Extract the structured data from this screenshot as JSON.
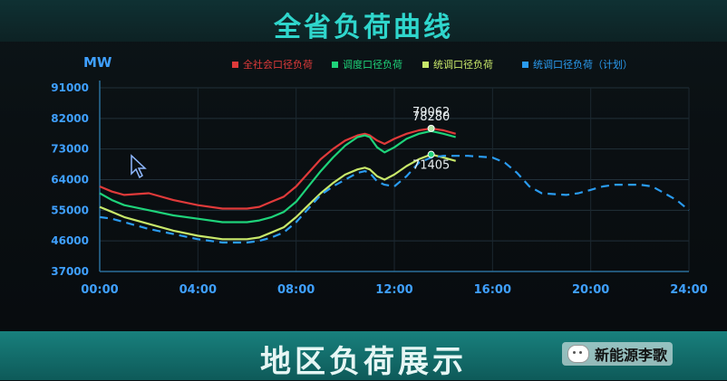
{
  "page": {
    "title": "全省负荷曲线",
    "bottom_title": "地区负荷展示",
    "watermark": "新能源李歌",
    "colors": {
      "title": "#2fd6cc",
      "axis_text": "#3fa0ff",
      "banner": "#13706d"
    }
  },
  "chart_data": {
    "type": "line",
    "title": "全省负荷曲线",
    "ylabel": "MW",
    "ylim": [
      37000,
      91000
    ],
    "xlim": [
      0,
      24
    ],
    "yticks": [
      37000,
      46000,
      55000,
      64000,
      73000,
      82000,
      91000
    ],
    "ytick_labels": [
      "37000",
      "46000",
      "55000",
      "64000",
      "73000",
      "82000",
      "91000"
    ],
    "xticks": [
      0,
      4,
      8,
      12,
      16,
      20,
      24
    ],
    "xtick_labels": [
      "00:00",
      "04:00",
      "08:00",
      "12:00",
      "16:00",
      "20:00",
      "24:00"
    ],
    "legend_position": "top-right",
    "grid": true,
    "series": [
      {
        "name": "全社会口径负荷",
        "color": "#e03a3a",
        "dash": false,
        "points": [
          [
            0.0,
            62000
          ],
          [
            0.5,
            60500
          ],
          [
            1.0,
            59500
          ],
          [
            2.0,
            60000
          ],
          [
            3.0,
            58000
          ],
          [
            4.0,
            56500
          ],
          [
            5.0,
            55500
          ],
          [
            6.0,
            55500
          ],
          [
            6.5,
            56000
          ],
          [
            7.0,
            57500
          ],
          [
            7.5,
            59000
          ],
          [
            8.0,
            62000
          ],
          [
            8.5,
            66000
          ],
          [
            9.0,
            70000
          ],
          [
            9.5,
            73000
          ],
          [
            10.0,
            75500
          ],
          [
            10.5,
            77000
          ],
          [
            10.8,
            77500
          ],
          [
            11.0,
            77000
          ],
          [
            11.3,
            75500
          ],
          [
            11.6,
            74500
          ],
          [
            12.0,
            76000
          ],
          [
            12.5,
            77500
          ],
          [
            13.0,
            78500
          ],
          [
            13.5,
            79062
          ],
          [
            14.0,
            78500
          ],
          [
            14.5,
            77500
          ]
        ]
      },
      {
        "name": "调度口径负荷",
        "color": "#1ed37a",
        "dash": false,
        "points": [
          [
            0.0,
            60000
          ],
          [
            0.5,
            58000
          ],
          [
            1.0,
            56500
          ],
          [
            2.0,
            55000
          ],
          [
            3.0,
            53500
          ],
          [
            4.0,
            52500
          ],
          [
            5.0,
            51500
          ],
          [
            6.0,
            51500
          ],
          [
            6.5,
            52000
          ],
          [
            7.0,
            53000
          ],
          [
            7.5,
            54500
          ],
          [
            8.0,
            57500
          ],
          [
            8.5,
            62000
          ],
          [
            9.0,
            66500
          ],
          [
            9.5,
            70500
          ],
          [
            10.0,
            74000
          ],
          [
            10.5,
            76500
          ],
          [
            10.8,
            77000
          ],
          [
            11.0,
            76500
          ],
          [
            11.3,
            73500
          ],
          [
            11.6,
            72000
          ],
          [
            12.0,
            73500
          ],
          [
            12.5,
            76000
          ],
          [
            13.0,
            77500
          ],
          [
            13.5,
            78280
          ],
          [
            14.0,
            77500
          ],
          [
            14.5,
            76500
          ]
        ]
      },
      {
        "name": "统调口径负荷",
        "color": "#c8e86a",
        "dash": false,
        "points": [
          [
            0.0,
            56000
          ],
          [
            0.5,
            54500
          ],
          [
            1.0,
            53000
          ],
          [
            2.0,
            51000
          ],
          [
            3.0,
            49000
          ],
          [
            4.0,
            47500
          ],
          [
            5.0,
            46500
          ],
          [
            6.0,
            46500
          ],
          [
            6.5,
            47000
          ],
          [
            7.0,
            48500
          ],
          [
            7.5,
            50000
          ],
          [
            8.0,
            53000
          ],
          [
            8.5,
            56500
          ],
          [
            9.0,
            60000
          ],
          [
            9.5,
            63000
          ],
          [
            10.0,
            65500
          ],
          [
            10.5,
            67000
          ],
          [
            10.8,
            67500
          ],
          [
            11.0,
            67000
          ],
          [
            11.3,
            65000
          ],
          [
            11.6,
            64000
          ],
          [
            12.0,
            65500
          ],
          [
            12.5,
            68000
          ],
          [
            13.0,
            70000
          ],
          [
            13.5,
            71405
          ],
          [
            14.0,
            70500
          ],
          [
            14.5,
            69500
          ]
        ]
      },
      {
        "name": "统调口径负荷（计划）",
        "color": "#2a9bf0",
        "dash": true,
        "points": [
          [
            0.0,
            53000
          ],
          [
            0.5,
            52500
          ],
          [
            1.0,
            51500
          ],
          [
            2.0,
            49500
          ],
          [
            3.0,
            48000
          ],
          [
            4.0,
            46500
          ],
          [
            5.0,
            45500
          ],
          [
            6.0,
            45500
          ],
          [
            6.5,
            46000
          ],
          [
            7.0,
            47000
          ],
          [
            7.5,
            48500
          ],
          [
            8.0,
            51500
          ],
          [
            8.5,
            55500
          ],
          [
            9.0,
            59500
          ],
          [
            9.5,
            62000
          ],
          [
            10.0,
            64000
          ],
          [
            10.5,
            66000
          ],
          [
            10.8,
            66500
          ],
          [
            11.0,
            66000
          ],
          [
            11.3,
            63500
          ],
          [
            11.6,
            62500
          ],
          [
            12.0,
            62000
          ],
          [
            12.5,
            65000
          ],
          [
            13.0,
            69000
          ],
          [
            13.5,
            70500
          ],
          [
            14.0,
            71000
          ],
          [
            15.0,
            71000
          ],
          [
            16.0,
            70500
          ],
          [
            16.5,
            69000
          ],
          [
            17.0,
            66000
          ],
          [
            17.5,
            62000
          ],
          [
            18.0,
            60000
          ],
          [
            19.0,
            59500
          ],
          [
            19.5,
            60000
          ],
          [
            20.0,
            61000
          ],
          [
            20.5,
            62000
          ],
          [
            21.0,
            62500
          ],
          [
            22.0,
            62500
          ],
          [
            22.5,
            62000
          ],
          [
            23.0,
            60000
          ],
          [
            23.5,
            58000
          ],
          [
            24.0,
            55000
          ]
        ]
      }
    ],
    "annotations": [
      {
        "label": "79062",
        "x": 13.5,
        "y": 79062,
        "series": 0,
        "marker_color": "#b7e6a8",
        "marker_series": 2
      },
      {
        "label": "78280",
        "x": 13.5,
        "y": 78280,
        "series": 1,
        "marker_color": "#1ed37a",
        "marker_series": -1
      },
      {
        "label": "71405",
        "x": 13.5,
        "y": 71405,
        "series": 2,
        "marker_color": "#1ed37a",
        "marker_series": 2
      }
    ]
  }
}
